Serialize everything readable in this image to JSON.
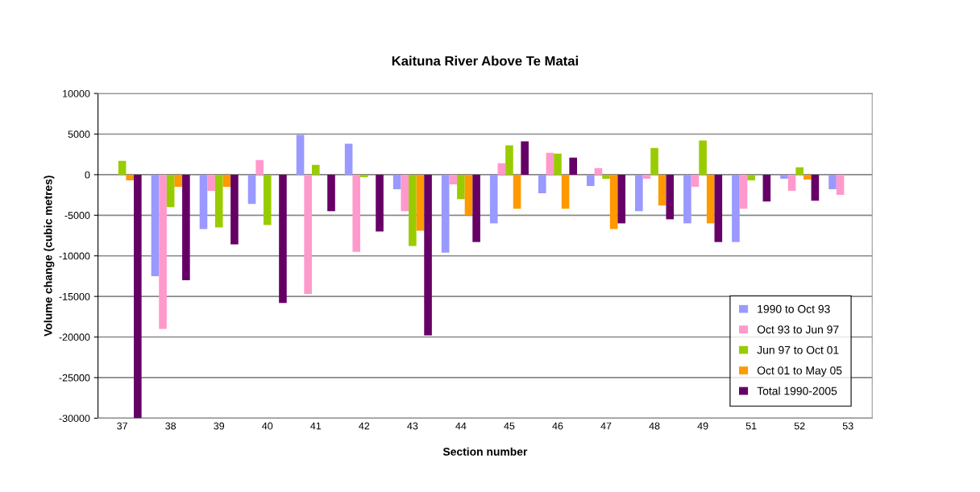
{
  "chart_data": {
    "type": "bar",
    "title": "Kaituna River Above Te Matai",
    "xlabel": "Section number",
    "ylabel": "Volume change (cubic metres)",
    "categories": [
      "37",
      "38",
      "39",
      "40",
      "41",
      "42",
      "43",
      "44",
      "45",
      "46",
      "47",
      "48",
      "49",
      "51",
      "52",
      "53"
    ],
    "series": [
      {
        "name": "1990 to Oct 93",
        "color": "#9999ff",
        "values": [
          0,
          -12500,
          -6700,
          -3600,
          4900,
          3800,
          -1800,
          -9600,
          -6000,
          -2300,
          -1400,
          -4500,
          -6000,
          -8300,
          -500,
          -1800
        ]
      },
      {
        "name": "Oct 93 to Jun 97",
        "color": "#ff99cc",
        "values": [
          0,
          -19000,
          -2000,
          1800,
          -14700,
          -9500,
          -4500,
          -1200,
          1400,
          2700,
          800,
          -500,
          -1500,
          -4200,
          -2000,
          -2500
        ]
      },
      {
        "name": "Jun 97 to Oct 01",
        "color": "#99cc00",
        "values": [
          1700,
          -4000,
          -6500,
          -6200,
          1200,
          -300,
          -8800,
          -3000,
          3600,
          2600,
          -500,
          3300,
          4200,
          -700,
          900,
          0
        ]
      },
      {
        "name": "Oct 01 to May 05",
        "color": "#ff9900",
        "values": [
          -700,
          -1500,
          -1500,
          0,
          0,
          0,
          -6900,
          -5000,
          -4200,
          -4200,
          -6700,
          -3800,
          -6000,
          0,
          -600,
          0
        ]
      },
      {
        "name": "Total 1990-2005",
        "color": "#660066",
        "values": [
          -30000,
          -13000,
          -8600,
          -15800,
          -4500,
          -7000,
          -19800,
          -8300,
          4100,
          2100,
          -6000,
          -5500,
          -8300,
          -3300,
          -3200,
          0
        ]
      }
    ],
    "ylim": [
      -30000,
      10000
    ],
    "yticks": [
      -30000,
      -25000,
      -20000,
      -15000,
      -10000,
      -5000,
      0,
      5000,
      10000
    ],
    "grid": "y",
    "legend": "bottom right"
  }
}
